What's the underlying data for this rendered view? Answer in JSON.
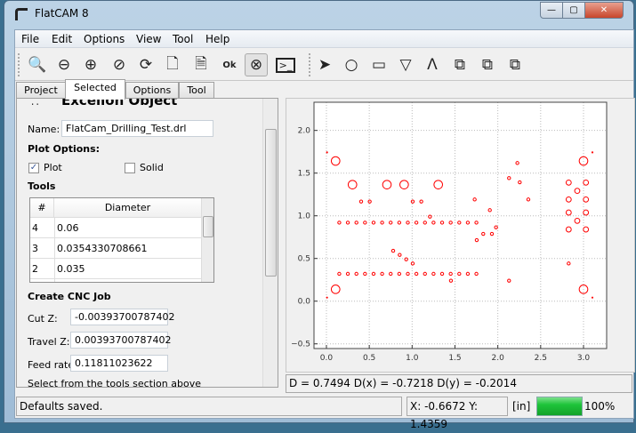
{
  "window": {
    "title": "FlatCAM 8",
    "controls": [
      "minimize",
      "maximize",
      "close"
    ]
  },
  "menu": [
    "File",
    "Edit",
    "Options",
    "View",
    "Tool",
    "Help"
  ],
  "toolbar": {
    "icons": [
      "zoom-fit-icon",
      "zoom-out-icon",
      "zoom-in-icon",
      "clear-plot-icon",
      "replot-icon",
      "new-project-icon",
      "open-file-icon",
      "ok-file-icon",
      "delete-file-icon",
      "shell-icon",
      "select-arrow-icon",
      "circle-icon",
      "rectangle-icon",
      "polygon-icon",
      "path-icon",
      "union-icon",
      "subtract-icon",
      "intersect-icon"
    ]
  },
  "tabs": [
    {
      "label": "Project"
    },
    {
      "label": "Selected",
      "active": true
    },
    {
      "label": "Options"
    },
    {
      "label": "Tool"
    }
  ],
  "selected": {
    "heading": "Excellon Object",
    "name_label": "Name:",
    "name_value": "FlatCam_Drilling_Test.drl",
    "plot_options_label": "Plot Options:",
    "plot_label": "Plot",
    "plot_checked": true,
    "solid_label": "Solid",
    "solid_checked": false,
    "tools_label": "Tools",
    "tools_table": {
      "headers": [
        "#",
        "Diameter"
      ],
      "rows": [
        [
          "4",
          "0.06"
        ],
        [
          "3",
          "0.0354330708661"
        ],
        [
          "2",
          "0.035"
        ]
      ]
    },
    "cnc_label": "Create CNC Job",
    "cut_z_label": "Cut Z:",
    "cut_z_value": "-0.00393700787402",
    "travel_z_label": "Travel Z:",
    "travel_z_value": "0.00393700787402",
    "feed_rate_label": "Feed rate:",
    "feed_rate_value": "0.11811023622",
    "hint": "Select from the tools section above"
  },
  "readout": "D = 0.7494  D(x) = -0.7218  D(y) = -0.2014",
  "status": {
    "message": "Defaults saved.",
    "coords": "X: -0.6672   Y: 1.4359",
    "units": "[in]",
    "progress": 100,
    "progress_label": "100%",
    "progress_color": "#1fc43a"
  },
  "chart_data": {
    "type": "scatter",
    "marker": "open-circle",
    "color": "#ff0000",
    "xlim": [
      -0.145,
      3.27
    ],
    "ylim": [
      -0.555,
      2.33
    ],
    "grid": true,
    "xticks": [
      "0.0",
      "0.5",
      "1.0",
      "1.5",
      "2.0",
      "2.5",
      "3.0"
    ],
    "yticks": [
      "−0.5",
      "0.0",
      "0.5",
      "1.0",
      "1.5",
      "2.0"
    ],
    "holes": [
      {
        "d": 0.1,
        "pts": [
          [
            0.107,
            1.642
          ],
          [
            0.304,
            1.365
          ],
          [
            0.706,
            1.365
          ],
          [
            0.907,
            1.365
          ],
          [
            1.305,
            1.365
          ],
          [
            3.0,
            1.642
          ],
          [
            0.107,
            0.139
          ],
          [
            3.0,
            0.139
          ]
        ]
      },
      {
        "d": 0.06,
        "pts": [
          [
            2.827,
            1.389
          ],
          [
            3.028,
            1.389
          ],
          [
            2.827,
            1.191
          ],
          [
            3.028,
            1.191
          ],
          [
            2.827,
            1.038
          ],
          [
            3.028,
            1.038
          ],
          [
            2.827,
            0.84
          ],
          [
            3.028,
            0.84
          ],
          [
            2.927,
            1.292
          ],
          [
            2.927,
            0.941
          ]
        ]
      },
      {
        "d": 0.035,
        "pts": [
          [
            0.15,
            0.92
          ],
          [
            0.25,
            0.92
          ],
          [
            0.35,
            0.92
          ],
          [
            0.45,
            0.92
          ],
          [
            0.55,
            0.92
          ],
          [
            0.65,
            0.92
          ],
          [
            0.75,
            0.92
          ],
          [
            0.85,
            0.92
          ],
          [
            0.95,
            0.92
          ],
          [
            1.05,
            0.92
          ],
          [
            1.15,
            0.92
          ],
          [
            1.25,
            0.92
          ],
          [
            1.35,
            0.92
          ],
          [
            1.45,
            0.92
          ],
          [
            1.55,
            0.92
          ],
          [
            1.65,
            0.92
          ],
          [
            1.75,
            0.92
          ],
          [
            0.15,
            0.32
          ],
          [
            0.25,
            0.32
          ],
          [
            0.35,
            0.32
          ],
          [
            0.45,
            0.32
          ],
          [
            0.55,
            0.32
          ],
          [
            0.65,
            0.32
          ],
          [
            0.75,
            0.32
          ],
          [
            0.85,
            0.32
          ],
          [
            0.95,
            0.32
          ],
          [
            1.05,
            0.32
          ],
          [
            1.15,
            0.32
          ],
          [
            1.25,
            0.32
          ],
          [
            1.35,
            0.32
          ],
          [
            1.45,
            0.32
          ],
          [
            1.55,
            0.32
          ],
          [
            1.65,
            0.32
          ],
          [
            1.75,
            0.32
          ],
          [
            0.405,
            1.167
          ],
          [
            0.505,
            1.167
          ],
          [
            1.007,
            1.167
          ],
          [
            1.107,
            1.167
          ],
          [
            1.208,
            0.99
          ],
          [
            0.779,
            0.59
          ],
          [
            0.855,
            0.542
          ],
          [
            0.931,
            0.49
          ],
          [
            1.007,
            0.441
          ],
          [
            1.453,
            0.24
          ],
          [
            1.73,
            1.191
          ],
          [
            1.754,
            0.715
          ],
          [
            1.83,
            0.788
          ],
          [
            1.907,
            1.066
          ],
          [
            1.931,
            0.788
          ],
          [
            1.979,
            0.865
          ],
          [
            2.131,
            1.441
          ],
          [
            2.228,
            1.618
          ],
          [
            2.256,
            1.392
          ],
          [
            2.356,
            1.191
          ],
          [
            2.131,
            0.24
          ],
          [
            2.827,
            0.441
          ]
        ]
      },
      {
        "d": 0.01,
        "pts": [
          [
            0.007,
            1.743
          ],
          [
            3.104,
            1.743
          ],
          [
            0.007,
            0.042
          ],
          [
            3.104,
            0.042
          ]
        ]
      }
    ]
  }
}
